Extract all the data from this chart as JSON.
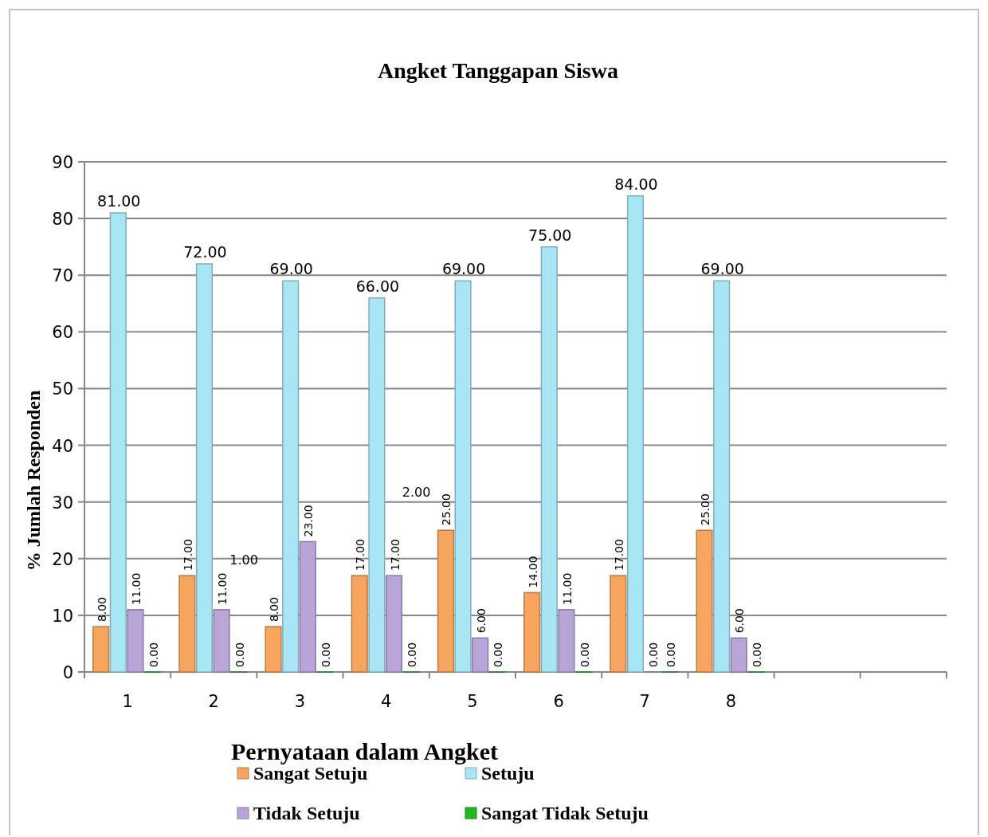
{
  "chart_data": {
    "type": "bar",
    "title": "Angket Tanggapan Siswa",
    "xlabel": "Pernyataan dalam Angket",
    "ylabel": "% Jumlah Responden",
    "categories": [
      "1",
      "2",
      "3",
      "4",
      "5",
      "6",
      "7",
      "8",
      null,
      null
    ],
    "series": [
      {
        "name": "Sangat Setuju",
        "color": "#f7a45e",
        "values": [
          8,
          17,
          8,
          17,
          25,
          14,
          17,
          25,
          null,
          null
        ],
        "value_labels": [
          "8.00",
          "17.00",
          "8.00",
          "17.00",
          "25.00",
          "14.00",
          "17.00",
          "25.00",
          null,
          null
        ]
      },
      {
        "name": "Setuju",
        "color": "#a9e6f5",
        "values": [
          81,
          72,
          69,
          66,
          69,
          75,
          84,
          69,
          null,
          null
        ],
        "value_labels": [
          "81.00",
          "72.00",
          "69.00",
          "66.00",
          "69.00",
          "75.00",
          "84.00",
          "69.00",
          null,
          null
        ]
      },
      {
        "name": "Tidak Setuju",
        "color": "#b9a4d8",
        "values": [
          11,
          11,
          23,
          17,
          6,
          11,
          0,
          6,
          null,
          null
        ],
        "value_labels": [
          "11.00",
          "11.00",
          "23.00",
          "17.00",
          "6.00",
          "11.00",
          "0.00",
          "6.00",
          null,
          null
        ]
      },
      {
        "name": "Sangat Tidak Setuju",
        "color": "#22b822",
        "values": [
          0,
          0,
          0,
          0,
          0,
          0,
          0,
          0,
          null,
          null
        ],
        "value_labels": [
          "0.00",
          "0.00",
          "0.00",
          "0.00",
          "0.00",
          "0.00",
          "0.00",
          "0.00",
          null,
          null
        ]
      }
    ],
    "annotations": [
      {
        "text": "1.00",
        "x": "2",
        "y": 19
      },
      {
        "text": "2.00",
        "x": "4",
        "y": 31
      }
    ],
    "ylim": [
      0,
      90
    ],
    "yticks": [
      0,
      10,
      20,
      30,
      40,
      50,
      60,
      70,
      80,
      90
    ],
    "grid": "y",
    "legend": "bottom"
  }
}
